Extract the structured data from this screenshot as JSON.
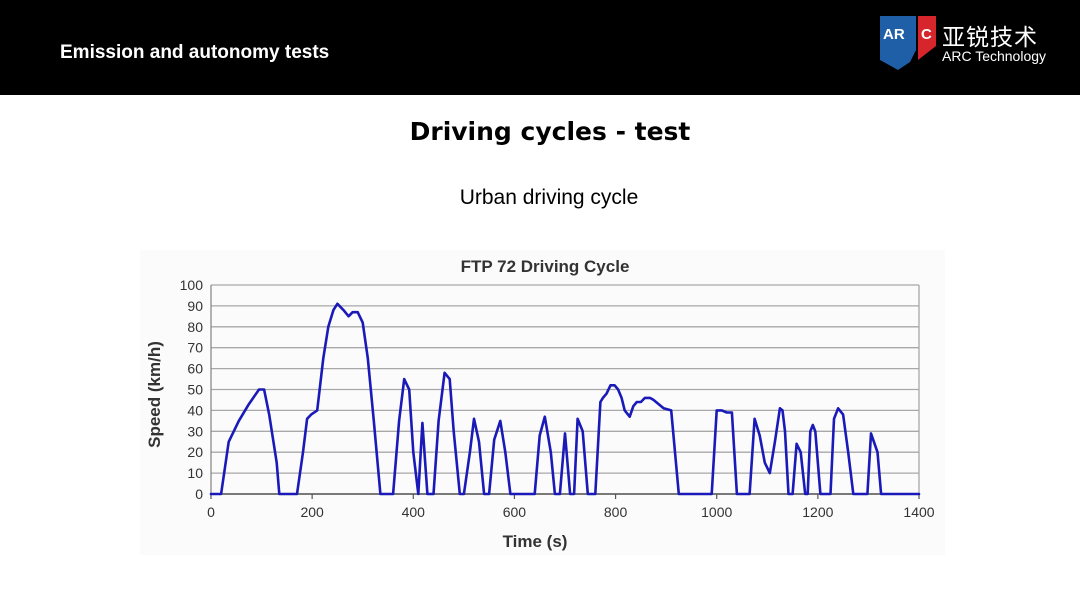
{
  "header": {
    "title": "Emission and autonomy tests",
    "logo": {
      "mark_letters": "ARC",
      "cn_name": "亚锐技术",
      "en_name": "ARC Technology",
      "colors": {
        "blue": "#1f5fa8",
        "red": "#d7262b"
      }
    }
  },
  "slide": {
    "title": "Driving cycles - test",
    "subtitle": "Urban driving cycle"
  },
  "chart_data": {
    "type": "line",
    "title": "FTP 72 Driving Cycle",
    "xlabel": "Time (s)",
    "ylabel": "Speed (km/h)",
    "xlim": [
      0,
      1400
    ],
    "ylim": [
      0,
      100
    ],
    "xticks": [
      0,
      200,
      400,
      600,
      800,
      1000,
      1200,
      1400
    ],
    "yticks": [
      0,
      10,
      20,
      30,
      40,
      50,
      60,
      70,
      80,
      90,
      100
    ],
    "grid": "horizontal",
    "legend": "none",
    "line_color": "#1a1ab8",
    "series": [
      {
        "x": [
          0,
          20,
          35,
          55,
          75,
          95,
          105,
          115,
          130,
          135,
          165,
          170,
          182,
          190,
          198,
          210,
          222,
          232,
          242,
          250,
          262,
          272,
          280,
          290,
          300,
          310,
          322,
          335,
          345,
          360,
          372,
          382,
          392,
          400,
          410,
          418,
          428,
          440,
          450,
          462,
          472,
          480,
          492,
          500,
          512,
          520,
          530,
          540,
          550,
          560,
          572,
          582,
          592,
          602,
          612,
          625,
          640,
          650,
          660,
          672,
          680,
          690,
          700,
          710,
          718,
          725,
          735,
          745,
          750,
          760,
          770,
          775,
          782,
          790,
          798,
          805,
          812,
          818,
          828,
          835,
          842,
          850,
          858,
          868,
          875,
          885,
          895,
          910,
          925,
          940,
          950,
          960,
          970,
          980,
          990,
          1000,
          1010,
          1020,
          1030,
          1040,
          1055,
          1065,
          1075,
          1085,
          1095,
          1105,
          1115,
          1125,
          1130,
          1135,
          1142,
          1150,
          1158,
          1166,
          1175,
          1180,
          1185,
          1190,
          1195,
          1205,
          1215,
          1225,
          1232,
          1240,
          1250,
          1260,
          1270,
          1280,
          1290,
          1298,
          1305,
          1318,
          1325,
          1332,
          1340,
          1348,
          1355,
          1372,
          1385,
          1400
        ],
        "y": [
          0,
          0,
          25,
          35,
          43,
          50,
          50,
          38,
          15,
          0,
          0,
          0,
          20,
          36,
          38,
          40,
          65,
          80,
          88,
          91,
          88,
          85,
          87,
          87,
          82,
          65,
          35,
          0,
          0,
          0,
          35,
          55,
          50,
          20,
          0,
          34,
          0,
          0,
          35,
          58,
          55,
          30,
          0,
          0,
          20,
          36,
          25,
          0,
          0,
          26,
          35,
          20,
          0,
          0,
          0,
          0,
          0,
          28,
          37,
          20,
          0,
          0,
          29,
          0,
          0,
          36,
          30,
          0,
          0,
          0,
          44,
          46,
          48,
          52,
          52,
          50,
          46,
          40,
          37,
          42,
          44,
          44,
          46,
          46,
          45,
          43,
          41,
          40,
          0,
          0,
          0,
          0,
          0,
          0,
          0,
          40,
          40,
          39,
          39,
          0,
          0,
          0,
          36,
          28,
          15,
          10,
          25,
          41,
          40,
          30,
          0,
          0,
          24,
          20,
          0,
          0,
          30,
          33,
          30,
          0,
          0,
          0,
          36,
          41,
          38,
          20,
          0,
          0,
          0,
          0,
          29,
          20,
          0,
          0,
          0,
          0,
          0,
          0,
          0,
          0
        ]
      }
    ]
  }
}
